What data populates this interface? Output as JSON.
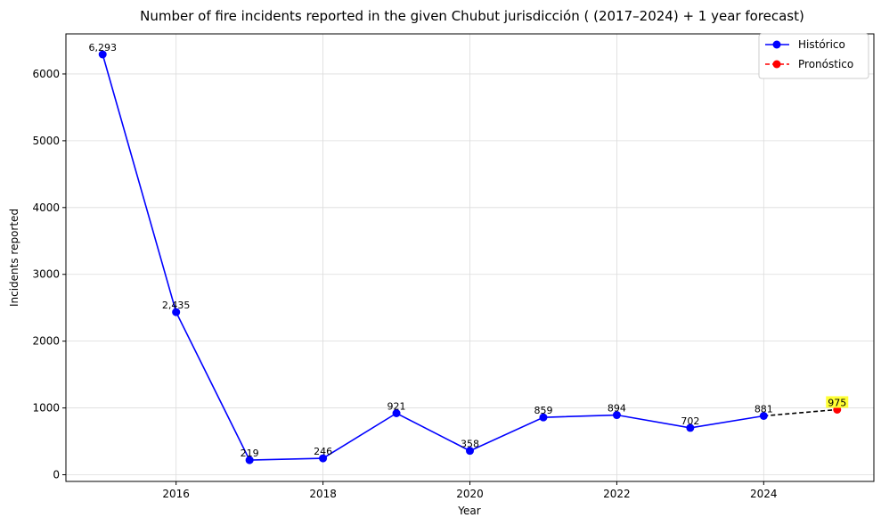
{
  "chart_data": {
    "type": "line",
    "title": "Number of fire incidents reported in the given Chubut jurisdicción  ( (2017–2024)  + 1 year forecast)",
    "xlabel": "Year",
    "ylabel": "Incidents reported",
    "xlim": [
      2014.5,
      2025.5
    ],
    "ylim": [
      -100,
      6600
    ],
    "xticks": [
      2016,
      2018,
      2020,
      2022,
      2024
    ],
    "yticks": [
      0,
      1000,
      2000,
      3000,
      4000,
      5000,
      6000
    ],
    "grid": true,
    "legend_position": "top-right",
    "series": [
      {
        "name": "Histórico",
        "color": "#0000ff",
        "marker_color": "#0000ff",
        "line_style": "solid",
        "x": [
          2015,
          2016,
          2017,
          2018,
          2019,
          2020,
          2021,
          2022,
          2023,
          2024
        ],
        "values": [
          6293,
          2435,
          219,
          246,
          921,
          358,
          859,
          894,
          702,
          881
        ],
        "labels": [
          "6,293",
          "2,435",
          "219",
          "246",
          "921",
          "358",
          "859",
          "894",
          "702",
          "881"
        ]
      },
      {
        "name": "Pronóstico",
        "color": "#000000",
        "marker_color": "#ff0000",
        "legend_line_color": "#ff0000",
        "line_style": "dashed",
        "x": [
          2024,
          2025
        ],
        "values": [
          881,
          975
        ],
        "labels": [
          "",
          "975"
        ],
        "label_highlight": "#ffff33"
      }
    ]
  }
}
